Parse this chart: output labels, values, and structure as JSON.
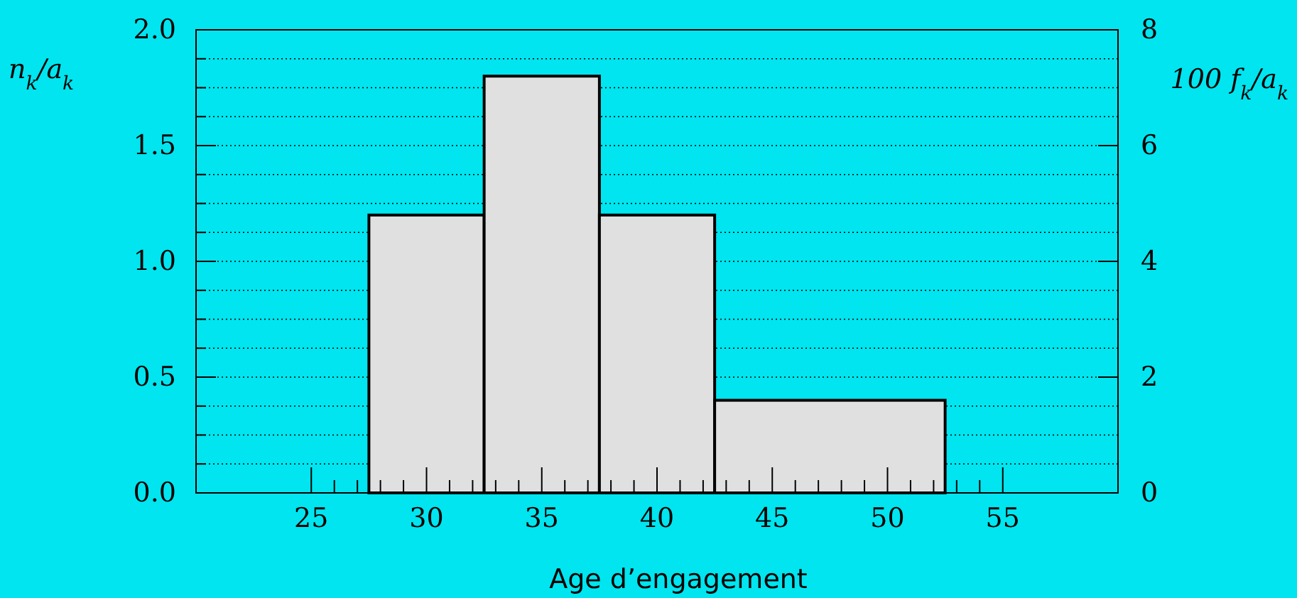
{
  "chart_data": {
    "type": "histogram",
    "xlabel": "Age d’engagement",
    "ylabel": "n$_{k}$/a$_{k}$",
    "y2label": "100 f$_{k}$/a$_{k}$",
    "bins": [
      27.5,
      32.5,
      37.5,
      42.5,
      52.5
    ],
    "values": [
      1.2,
      1.8,
      1.2,
      0.4
    ],
    "color": "#e0e0e0",
    "xlim": [
      20,
      60
    ],
    "xticks": [
      25,
      {
        "value": 26,
        "label": null
      },
      {
        "value": 27,
        "label": null
      },
      {
        "value": 28,
        "label": null
      },
      {
        "value": 29,
        "label": null
      },
      30,
      {
        "value": 31,
        "label": null
      },
      {
        "value": 32,
        "label": null
      },
      {
        "value": 33,
        "label": null
      },
      {
        "value": 34,
        "label": null
      },
      35,
      {
        "value": 36,
        "label": null
      },
      {
        "value": 37,
        "label": null
      },
      {
        "value": 38,
        "label": null
      },
      {
        "value": 39,
        "label": null
      },
      40,
      {
        "value": 41,
        "label": null
      },
      {
        "value": 42,
        "label": null
      },
      {
        "value": 43,
        "label": null
      },
      {
        "value": 44,
        "label": null
      },
      45,
      {
        "value": 46,
        "label": null
      },
      {
        "value": 47,
        "label": null
      },
      {
        "value": 48,
        "label": null
      },
      {
        "value": 49,
        "label": null
      },
      50,
      {
        "value": 51,
        "label": null
      },
      {
        "value": 52,
        "label": null
      },
      {
        "value": 53,
        "label": null
      },
      {
        "value": 54,
        "label": null
      },
      55
    ],
    "ylim": [
      0,
      2
    ],
    "yticks": [
      {
        "value": 0,
        "label": "0.0"
      },
      {
        "value": 0.125,
        "label": null
      },
      {
        "value": 0.25,
        "label": null
      },
      {
        "value": 0.375,
        "label": null
      },
      0.5,
      {
        "value": 0.625,
        "label": null
      },
      {
        "value": 0.75,
        "label": null
      },
      {
        "value": 0.875,
        "label": null
      },
      {
        "value": 1,
        "label": "1.0"
      },
      {
        "value": 1.125,
        "label": null
      },
      {
        "value": 1.25,
        "label": null
      },
      {
        "value": 1.375,
        "label": null
      },
      1.5,
      {
        "value": 1.625,
        "label": null
      },
      {
        "value": 1.75,
        "label": null
      },
      {
        "value": 1.875,
        "label": null
      },
      {
        "value": 2,
        "label": "2.0"
      }
    ],
    "y2lim": [
      0,
      8
    ],
    "y2ticks": [
      0,
      2,
      4,
      6,
      8
    ],
    "grid": "y"
  }
}
